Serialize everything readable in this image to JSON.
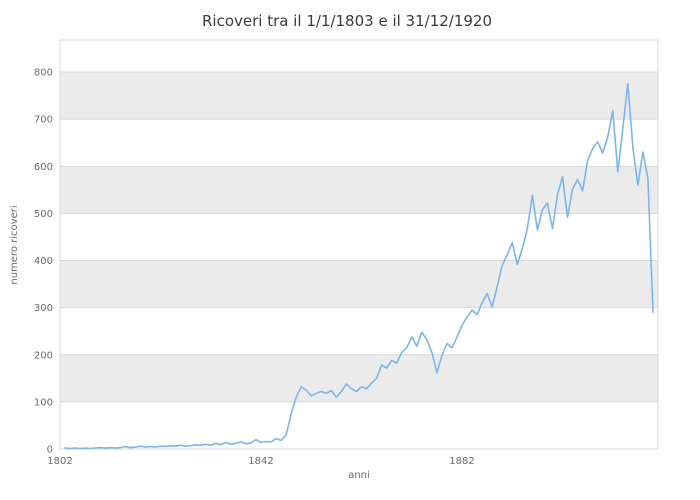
{
  "title": "Ricoveri tra il 1/1/1803 e il 31/12/1920",
  "chart_data": {
    "type": "line",
    "title": "Ricoveri tra il 1/1/1803 e il 31/12/1920",
    "xlabel": "anni",
    "ylabel": "numero ricoveri",
    "xlim": [
      1802,
      1921
    ],
    "ylim": [
      0,
      868
    ],
    "xticks": [
      1802,
      1842,
      1882
    ],
    "yticks": [
      0,
      100,
      200,
      300,
      400,
      500,
      600,
      700,
      800
    ],
    "bands": [
      [
        100,
        200
      ],
      [
        300,
        400
      ],
      [
        500,
        600
      ],
      [
        700,
        800
      ]
    ],
    "line_color": "#7cb5ec",
    "band_color": "#ebebeb",
    "grid_color": "#d9d9d9",
    "legend": "none",
    "grid": "horizontal",
    "x": [
      1803,
      1804,
      1805,
      1806,
      1807,
      1808,
      1809,
      1810,
      1811,
      1812,
      1813,
      1814,
      1815,
      1816,
      1817,
      1818,
      1819,
      1820,
      1821,
      1822,
      1823,
      1824,
      1825,
      1826,
      1827,
      1828,
      1829,
      1830,
      1831,
      1832,
      1833,
      1834,
      1835,
      1836,
      1837,
      1838,
      1839,
      1840,
      1841,
      1842,
      1843,
      1844,
      1845,
      1846,
      1847,
      1848,
      1849,
      1850,
      1851,
      1852,
      1853,
      1854,
      1855,
      1856,
      1857,
      1858,
      1859,
      1860,
      1861,
      1862,
      1863,
      1864,
      1865,
      1866,
      1867,
      1868,
      1869,
      1870,
      1871,
      1872,
      1873,
      1874,
      1875,
      1876,
      1877,
      1878,
      1879,
      1880,
      1881,
      1882,
      1883,
      1884,
      1885,
      1886,
      1887,
      1888,
      1889,
      1890,
      1891,
      1892,
      1893,
      1894,
      1895,
      1896,
      1897,
      1898,
      1899,
      1900,
      1901,
      1902,
      1903,
      1904,
      1905,
      1906,
      1907,
      1908,
      1909,
      1910,
      1911,
      1912,
      1913,
      1914,
      1915,
      1916,
      1917,
      1918,
      1919,
      1920
    ],
    "values": [
      2,
      1,
      2,
      1,
      2,
      1,
      2,
      3,
      2,
      3,
      2,
      3,
      5,
      3,
      4,
      6,
      4,
      5,
      4,
      6,
      5,
      7,
      6,
      8,
      6,
      7,
      9,
      8,
      10,
      8,
      12,
      9,
      14,
      10,
      12,
      15,
      11,
      13,
      20,
      14,
      16,
      15,
      22,
      18,
      30,
      75,
      110,
      132,
      125,
      113,
      118,
      122,
      118,
      124,
      110,
      122,
      138,
      128,
      122,
      132,
      128,
      140,
      150,
      178,
      172,
      188,
      182,
      205,
      215,
      238,
      218,
      248,
      232,
      205,
      162,
      198,
      224,
      215,
      238,
      262,
      280,
      295,
      285,
      310,
      330,
      302,
      345,
      390,
      412,
      438,
      392,
      425,
      468,
      538,
      465,
      508,
      522,
      468,
      540,
      578,
      492,
      552,
      572,
      548,
      612,
      638,
      652,
      628,
      662,
      718,
      588,
      680,
      775,
      640,
      560,
      630,
      575,
      290
    ]
  }
}
